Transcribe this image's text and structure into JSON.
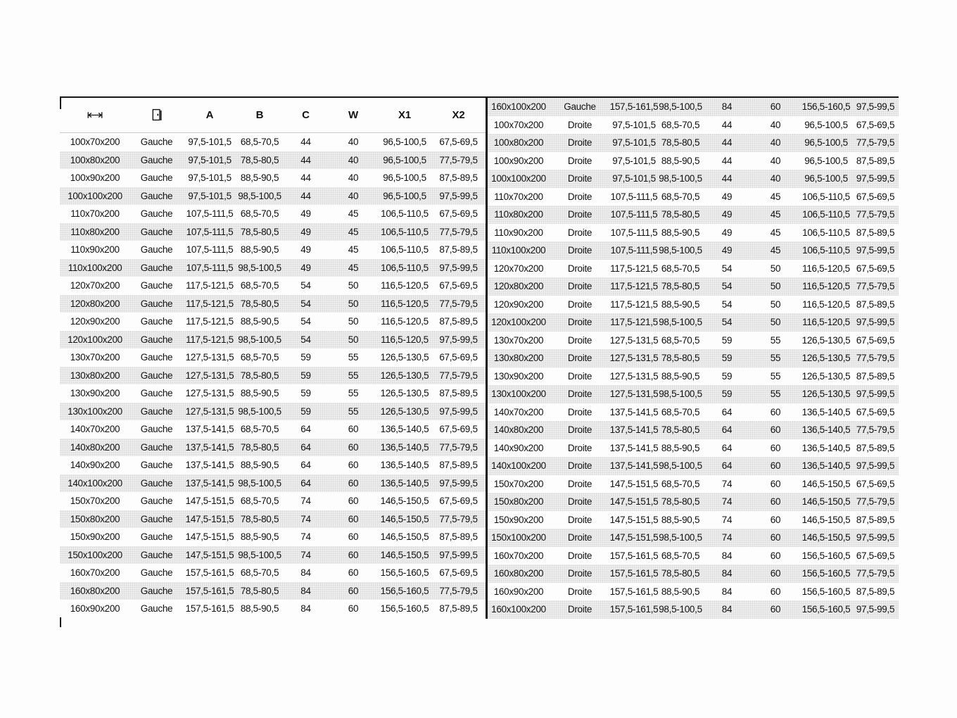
{
  "header": {
    "a": "A",
    "b": "B",
    "c": "C",
    "w": "W",
    "x1": "X1",
    "x2": "X2"
  },
  "icons": {
    "width": "width-dimension-icon",
    "door": "door-hinge-side-icon"
  },
  "colors": {
    "divider": "#161616",
    "top_rule": "#161616",
    "header_rule": "#c9c9c9",
    "row_shade": "#ededed",
    "text": "#101010"
  },
  "table_meta": {
    "cell_names": [
      "cell-size",
      "cell-hinge-side",
      "cell-a",
      "cell-b",
      "cell-c",
      "cell-w",
      "cell-x1",
      "cell-x2"
    ]
  },
  "left_table": {
    "rows": [
      [
        "100x70x200",
        "Gauche",
        "97,5-101,5",
        "68,5-70,5",
        "44",
        "40",
        "96,5-100,5",
        "67,5-69,5"
      ],
      [
        "100x80x200",
        "Gauche",
        "97,5-101,5",
        "78,5-80,5",
        "44",
        "40",
        "96,5-100,5",
        "77,5-79,5"
      ],
      [
        "100x90x200",
        "Gauche",
        "97,5-101,5",
        "88,5-90,5",
        "44",
        "40",
        "96,5-100,5",
        "87,5-89,5"
      ],
      [
        "100x100x200",
        "Gauche",
        "97,5-101,5",
        "98,5-100,5",
        "44",
        "40",
        "96,5-100,5",
        "97,5-99,5"
      ],
      [
        "110x70x200",
        "Gauche",
        "107,5-111,5",
        "68,5-70,5",
        "49",
        "45",
        "106,5-110,5",
        "67,5-69,5"
      ],
      [
        "110x80x200",
        "Gauche",
        "107,5-111,5",
        "78,5-80,5",
        "49",
        "45",
        "106,5-110,5",
        "77,5-79,5"
      ],
      [
        "110x90x200",
        "Gauche",
        "107,5-111,5",
        "88,5-90,5",
        "49",
        "45",
        "106,5-110,5",
        "87,5-89,5"
      ],
      [
        "110x100x200",
        "Gauche",
        "107,5-111,5",
        "98,5-100,5",
        "49",
        "45",
        "106,5-110,5",
        "97,5-99,5"
      ],
      [
        "120x70x200",
        "Gauche",
        "117,5-121,5",
        "68,5-70,5",
        "54",
        "50",
        "116,5-120,5",
        "67,5-69,5"
      ],
      [
        "120x80x200",
        "Gauche",
        "117,5-121,5",
        "78,5-80,5",
        "54",
        "50",
        "116,5-120,5",
        "77,5-79,5"
      ],
      [
        "120x90x200",
        "Gauche",
        "117,5-121,5",
        "88,5-90,5",
        "54",
        "50",
        "116,5-120,5",
        "87,5-89,5"
      ],
      [
        "120x100x200",
        "Gauche",
        "117,5-121,5",
        "98,5-100,5",
        "54",
        "50",
        "116,5-120,5",
        "97,5-99,5"
      ],
      [
        "130x70x200",
        "Gauche",
        "127,5-131,5",
        "68,5-70,5",
        "59",
        "55",
        "126,5-130,5",
        "67,5-69,5"
      ],
      [
        "130x80x200",
        "Gauche",
        "127,5-131,5",
        "78,5-80,5",
        "59",
        "55",
        "126,5-130,5",
        "77,5-79,5"
      ],
      [
        "130x90x200",
        "Gauche",
        "127,5-131,5",
        "88,5-90,5",
        "59",
        "55",
        "126,5-130,5",
        "87,5-89,5"
      ],
      [
        "130x100x200",
        "Gauche",
        "127,5-131,5",
        "98,5-100,5",
        "59",
        "55",
        "126,5-130,5",
        "97,5-99,5"
      ],
      [
        "140x70x200",
        "Gauche",
        "137,5-141,5",
        "68,5-70,5",
        "64",
        "60",
        "136,5-140,5",
        "67,5-69,5"
      ],
      [
        "140x80x200",
        "Gauche",
        "137,5-141,5",
        "78,5-80,5",
        "64",
        "60",
        "136,5-140,5",
        "77,5-79,5"
      ],
      [
        "140x90x200",
        "Gauche",
        "137,5-141,5",
        "88,5-90,5",
        "64",
        "60",
        "136,5-140,5",
        "87,5-89,5"
      ],
      [
        "140x100x200",
        "Gauche",
        "137,5-141,5",
        "98,5-100,5",
        "64",
        "60",
        "136,5-140,5",
        "97,5-99,5"
      ],
      [
        "150x70x200",
        "Gauche",
        "147,5-151,5",
        "68,5-70,5",
        "74",
        "60",
        "146,5-150,5",
        "67,5-69,5"
      ],
      [
        "150x80x200",
        "Gauche",
        "147,5-151,5",
        "78,5-80,5",
        "74",
        "60",
        "146,5-150,5",
        "77,5-79,5"
      ],
      [
        "150x90x200",
        "Gauche",
        "147,5-151,5",
        "88,5-90,5",
        "74",
        "60",
        "146,5-150,5",
        "87,5-89,5"
      ],
      [
        "150x100x200",
        "Gauche",
        "147,5-151,5",
        "98,5-100,5",
        "74",
        "60",
        "146,5-150,5",
        "97,5-99,5"
      ],
      [
        "160x70x200",
        "Gauche",
        "157,5-161,5",
        "68,5-70,5",
        "84",
        "60",
        "156,5-160,5",
        "67,5-69,5"
      ],
      [
        "160x80x200",
        "Gauche",
        "157,5-161,5",
        "78,5-80,5",
        "84",
        "60",
        "156,5-160,5",
        "77,5-79,5"
      ],
      [
        "160x90x200",
        "Gauche",
        "157,5-161,5",
        "88,5-90,5",
        "84",
        "60",
        "156,5-160,5",
        "87,5-89,5"
      ]
    ]
  },
  "right_table": {
    "rows": [
      [
        "160x100x200",
        "Gauche",
        "157,5-161,5",
        "98,5-100,5",
        "84",
        "60",
        "156,5-160,5",
        "97,5-99,5"
      ],
      [
        "100x70x200",
        "Droite",
        "97,5-101,5",
        "68,5-70,5",
        "44",
        "40",
        "96,5-100,5",
        "67,5-69,5"
      ],
      [
        "100x80x200",
        "Droite",
        "97,5-101,5",
        "78,5-80,5",
        "44",
        "40",
        "96,5-100,5",
        "77,5-79,5"
      ],
      [
        "100x90x200",
        "Droite",
        "97,5-101,5",
        "88,5-90,5",
        "44",
        "40",
        "96,5-100,5",
        "87,5-89,5"
      ],
      [
        "100x100x200",
        "Droite",
        "97,5-101,5",
        "98,5-100,5",
        "44",
        "40",
        "96,5-100,5",
        "97,5-99,5"
      ],
      [
        "110x70x200",
        "Droite",
        "107,5-111,5",
        "68,5-70,5",
        "49",
        "45",
        "106,5-110,5",
        "67,5-69,5"
      ],
      [
        "110x80x200",
        "Droite",
        "107,5-111,5",
        "78,5-80,5",
        "49",
        "45",
        "106,5-110,5",
        "77,5-79,5"
      ],
      [
        "110x90x200",
        "Droite",
        "107,5-111,5",
        "88,5-90,5",
        "49",
        "45",
        "106,5-110,5",
        "87,5-89,5"
      ],
      [
        "110x100x200",
        "Droite",
        "107,5-111,5",
        "98,5-100,5",
        "49",
        "45",
        "106,5-110,5",
        "97,5-99,5"
      ],
      [
        "120x70x200",
        "Droite",
        "117,5-121,5",
        "68,5-70,5",
        "54",
        "50",
        "116,5-120,5",
        "67,5-69,5"
      ],
      [
        "120x80x200",
        "Droite",
        "117,5-121,5",
        "78,5-80,5",
        "54",
        "50",
        "116,5-120,5",
        "77,5-79,5"
      ],
      [
        "120x90x200",
        "Droite",
        "117,5-121,5",
        "88,5-90,5",
        "54",
        "50",
        "116,5-120,5",
        "87,5-89,5"
      ],
      [
        "120x100x200",
        "Droite",
        "117,5-121,5",
        "98,5-100,5",
        "54",
        "50",
        "116,5-120,5",
        "97,5-99,5"
      ],
      [
        "130x70x200",
        "Droite",
        "127,5-131,5",
        "68,5-70,5",
        "59",
        "55",
        "126,5-130,5",
        "67,5-69,5"
      ],
      [
        "130x80x200",
        "Droite",
        "127,5-131,5",
        "78,5-80,5",
        "59",
        "55",
        "126,5-130,5",
        "77,5-79,5"
      ],
      [
        "130x90x200",
        "Droite",
        "127,5-131,5",
        "88,5-90,5",
        "59",
        "55",
        "126,5-130,5",
        "87,5-89,5"
      ],
      [
        "130x100x200",
        "Droite",
        "127,5-131,5",
        "98,5-100,5",
        "59",
        "55",
        "126,5-130,5",
        "97,5-99,5"
      ],
      [
        "140x70x200",
        "Droite",
        "137,5-141,5",
        "68,5-70,5",
        "64",
        "60",
        "136,5-140,5",
        "67,5-69,5"
      ],
      [
        "140x80x200",
        "Droite",
        "137,5-141,5",
        "78,5-80,5",
        "64",
        "60",
        "136,5-140,5",
        "77,5-79,5"
      ],
      [
        "140x90x200",
        "Droite",
        "137,5-141,5",
        "88,5-90,5",
        "64",
        "60",
        "136,5-140,5",
        "87,5-89,5"
      ],
      [
        "140x100x200",
        "Droite",
        "137,5-141,5",
        "98,5-100,5",
        "64",
        "60",
        "136,5-140,5",
        "97,5-99,5"
      ],
      [
        "150x70x200",
        "Droite",
        "147,5-151,5",
        "68,5-70,5",
        "74",
        "60",
        "146,5-150,5",
        "67,5-69,5"
      ],
      [
        "150x80x200",
        "Droite",
        "147,5-151,5",
        "78,5-80,5",
        "74",
        "60",
        "146,5-150,5",
        "77,5-79,5"
      ],
      [
        "150x90x200",
        "Droite",
        "147,5-151,5",
        "88,5-90,5",
        "74",
        "60",
        "146,5-150,5",
        "87,5-89,5"
      ],
      [
        "150x100x200",
        "Droite",
        "147,5-151,5",
        "98,5-100,5",
        "74",
        "60",
        "146,5-150,5",
        "97,5-99,5"
      ],
      [
        "160x70x200",
        "Droite",
        "157,5-161,5",
        "68,5-70,5",
        "84",
        "60",
        "156,5-160,5",
        "67,5-69,5"
      ],
      [
        "160x80x200",
        "Droite",
        "157,5-161,5",
        "78,5-80,5",
        "84",
        "60",
        "156,5-160,5",
        "77,5-79,5"
      ],
      [
        "160x90x200",
        "Droite",
        "157,5-161,5",
        "88,5-90,5",
        "84",
        "60",
        "156,5-160,5",
        "87,5-89,5"
      ],
      [
        "160x100x200",
        "Droite",
        "157,5-161,5",
        "98,5-100,5",
        "84",
        "60",
        "156,5-160,5",
        "97,5-99,5"
      ]
    ]
  }
}
